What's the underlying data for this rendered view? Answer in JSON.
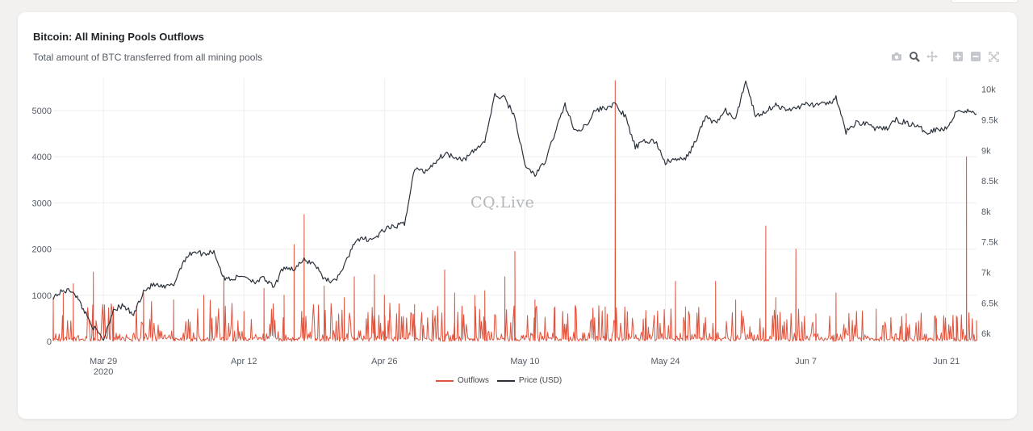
{
  "title": "Bitcoin: All Mining Pools Outflows",
  "subtitle": "Total amount of BTC transferred from all mining pools",
  "watermark": "CQ.Live",
  "toolbar": {
    "icons": [
      "camera-icon",
      "zoom-icon",
      "pan-icon",
      "zoom-in-icon",
      "zoom-out-icon",
      "autoscale-icon"
    ]
  },
  "colors": {
    "outflows": "#e0533d",
    "price": "#2b323c",
    "grid": "#eeeeee",
    "axis_text": "#555b63"
  },
  "chart_data": {
    "type": "line",
    "x_range": [
      "2020-03-24",
      "2020-06-24"
    ],
    "x_ticks": [
      {
        "label": "Mar 29",
        "sublabel": "2020",
        "date": "2020-03-29"
      },
      {
        "label": "Apr 12",
        "sublabel": "",
        "date": "2020-04-12"
      },
      {
        "label": "Apr 26",
        "sublabel": "",
        "date": "2020-04-26"
      },
      {
        "label": "May 10",
        "sublabel": "",
        "date": "2020-05-10"
      },
      {
        "label": "May 24",
        "sublabel": "",
        "date": "2020-05-24"
      },
      {
        "label": "Jun 7",
        "sublabel": "",
        "date": "2020-06-07"
      },
      {
        "label": "Jun 21",
        "sublabel": "",
        "date": "2020-06-21"
      }
    ],
    "y_left": {
      "range": [
        0,
        5700
      ],
      "ticks": [
        0,
        1000,
        2000,
        3000,
        4000,
        5000
      ],
      "tick_labels": [
        "0",
        "1000",
        "2000",
        "3000",
        "4000",
        "5000"
      ]
    },
    "y_right": {
      "range": [
        5870,
        10180
      ],
      "ticks": [
        6000,
        6500,
        7000,
        7500,
        8000,
        8500,
        9000,
        9500,
        10000
      ],
      "tick_labels": [
        "6k",
        "6.5k",
        "7k",
        "7.5k",
        "8k",
        "8.5k",
        "9k",
        "9.5k",
        "10k"
      ]
    },
    "grid": true,
    "legend_position": "bottom-center",
    "series": [
      {
        "name": "Outflows",
        "axis": "left",
        "style": "spiky",
        "baseline": [
          [
            "2020-03-24",
            150
          ],
          [
            "2020-04-05",
            180
          ],
          [
            "2020-04-20",
            170
          ],
          [
            "2020-05-05",
            160
          ],
          [
            "2020-05-20",
            150
          ],
          [
            "2020-06-05",
            140
          ],
          [
            "2020-06-24",
            130
          ]
        ],
        "spikes": [
          [
            "2020-03-24",
            950
          ],
          [
            "2020-03-25",
            1050
          ],
          [
            "2020-03-26",
            1250
          ],
          [
            "2020-03-28",
            1500
          ],
          [
            "2020-03-30",
            750
          ],
          [
            "2020-04-02",
            1050
          ],
          [
            "2020-04-05",
            900
          ],
          [
            "2020-04-08",
            1000
          ],
          [
            "2020-04-10",
            1400
          ],
          [
            "2020-04-12",
            650
          ],
          [
            "2020-04-14",
            1150
          ],
          [
            "2020-04-16",
            1000
          ],
          [
            "2020-04-17",
            2100
          ],
          [
            "2020-04-18",
            2750
          ],
          [
            "2020-04-20",
            1200
          ],
          [
            "2020-04-22",
            950
          ],
          [
            "2020-04-23",
            1400
          ],
          [
            "2020-04-25",
            1450
          ],
          [
            "2020-04-26",
            1000
          ],
          [
            "2020-04-29",
            800
          ],
          [
            "2020-05-02",
            1550
          ],
          [
            "2020-05-03",
            1050
          ],
          [
            "2020-05-05",
            1000
          ],
          [
            "2020-05-06",
            1100
          ],
          [
            "2020-05-08",
            1400
          ],
          [
            "2020-05-09",
            1950
          ],
          [
            "2020-05-11",
            900
          ],
          [
            "2020-05-13",
            750
          ],
          [
            "2020-05-15",
            750
          ],
          [
            "2020-05-18",
            750
          ],
          [
            "2020-05-19",
            5650
          ],
          [
            "2020-05-22",
            500
          ],
          [
            "2020-05-25",
            1300
          ],
          [
            "2020-05-26",
            750
          ],
          [
            "2020-05-29",
            1300
          ],
          [
            "2020-05-31",
            900
          ],
          [
            "2020-06-03",
            2500
          ],
          [
            "2020-06-04",
            950
          ],
          [
            "2020-06-06",
            2000
          ],
          [
            "2020-06-08",
            600
          ],
          [
            "2020-06-10",
            1050
          ],
          [
            "2020-06-14",
            700
          ],
          [
            "2020-06-17",
            600
          ],
          [
            "2020-06-20",
            500
          ],
          [
            "2020-06-22",
            550
          ],
          [
            "2020-06-23",
            4000
          ],
          [
            "2020-06-24",
            450
          ]
        ]
      },
      {
        "name": "Price (USD)",
        "axis": "right",
        "style": "line",
        "points": [
          [
            "2020-03-24",
            6600
          ],
          [
            "2020-03-25",
            6700
          ],
          [
            "2020-03-26",
            6700
          ],
          [
            "2020-03-27",
            6400
          ],
          [
            "2020-03-28",
            6100
          ],
          [
            "2020-03-29",
            5900
          ],
          [
            "2020-03-30",
            6400
          ],
          [
            "2020-03-31",
            6450
          ],
          [
            "2020-04-01",
            6300
          ],
          [
            "2020-04-02",
            6700
          ],
          [
            "2020-04-03",
            6800
          ],
          [
            "2020-04-04",
            6750
          ],
          [
            "2020-04-05",
            6800
          ],
          [
            "2020-04-06",
            7200
          ],
          [
            "2020-04-07",
            7350
          ],
          [
            "2020-04-08",
            7300
          ],
          [
            "2020-04-09",
            7350
          ],
          [
            "2020-04-10",
            6900
          ],
          [
            "2020-04-11",
            6900
          ],
          [
            "2020-04-12",
            6950
          ],
          [
            "2020-04-13",
            6850
          ],
          [
            "2020-04-14",
            6900
          ],
          [
            "2020-04-15",
            6750
          ],
          [
            "2020-04-16",
            7100
          ],
          [
            "2020-04-17",
            7050
          ],
          [
            "2020-04-18",
            7200
          ],
          [
            "2020-04-19",
            7150
          ],
          [
            "2020-04-20",
            6900
          ],
          [
            "2020-04-21",
            6850
          ],
          [
            "2020-04-22",
            7100
          ],
          [
            "2020-04-23",
            7500
          ],
          [
            "2020-04-24",
            7550
          ],
          [
            "2020-04-25",
            7550
          ],
          [
            "2020-04-26",
            7700
          ],
          [
            "2020-04-27",
            7750
          ],
          [
            "2020-04-28",
            7800
          ],
          [
            "2020-04-29",
            8700
          ],
          [
            "2020-04-30",
            8650
          ],
          [
            "2020-05-01",
            8800
          ],
          [
            "2020-05-02",
            8950
          ],
          [
            "2020-05-03",
            8900
          ],
          [
            "2020-05-04",
            8850
          ],
          [
            "2020-05-05",
            9000
          ],
          [
            "2020-05-06",
            9150
          ],
          [
            "2020-05-07",
            9900
          ],
          [
            "2020-05-08",
            9850
          ],
          [
            "2020-05-09",
            9550
          ],
          [
            "2020-05-10",
            8750
          ],
          [
            "2020-05-11",
            8600
          ],
          [
            "2020-05-12",
            8800
          ],
          [
            "2020-05-13",
            9300
          ],
          [
            "2020-05-14",
            9750
          ],
          [
            "2020-05-15",
            9300
          ],
          [
            "2020-05-16",
            9400
          ],
          [
            "2020-05-17",
            9650
          ],
          [
            "2020-05-18",
            9700
          ],
          [
            "2020-05-19",
            9750
          ],
          [
            "2020-05-20",
            9550
          ],
          [
            "2020-05-21",
            9050
          ],
          [
            "2020-05-22",
            9150
          ],
          [
            "2020-05-23",
            9150
          ],
          [
            "2020-05-24",
            8800
          ],
          [
            "2020-05-25",
            8850
          ],
          [
            "2020-05-26",
            8850
          ],
          [
            "2020-05-27",
            9150
          ],
          [
            "2020-05-28",
            9550
          ],
          [
            "2020-05-29",
            9450
          ],
          [
            "2020-05-30",
            9650
          ],
          [
            "2020-05-31",
            9500
          ],
          [
            "2020-06-01",
            10150
          ],
          [
            "2020-06-02",
            9550
          ],
          [
            "2020-06-03",
            9650
          ],
          [
            "2020-06-04",
            9750
          ],
          [
            "2020-06-05",
            9650
          ],
          [
            "2020-06-06",
            9700
          ],
          [
            "2020-06-07",
            9750
          ],
          [
            "2020-06-08",
            9750
          ],
          [
            "2020-06-09",
            9750
          ],
          [
            "2020-06-10",
            9850
          ],
          [
            "2020-06-11",
            9300
          ],
          [
            "2020-06-12",
            9450
          ],
          [
            "2020-06-13",
            9450
          ],
          [
            "2020-06-14",
            9350
          ],
          [
            "2020-06-15",
            9350
          ],
          [
            "2020-06-16",
            9500
          ],
          [
            "2020-06-17",
            9450
          ],
          [
            "2020-06-18",
            9400
          ],
          [
            "2020-06-19",
            9300
          ],
          [
            "2020-06-20",
            9350
          ],
          [
            "2020-06-21",
            9350
          ],
          [
            "2020-06-22",
            9650
          ],
          [
            "2020-06-23",
            9650
          ],
          [
            "2020-06-24",
            9600
          ]
        ]
      }
    ]
  }
}
